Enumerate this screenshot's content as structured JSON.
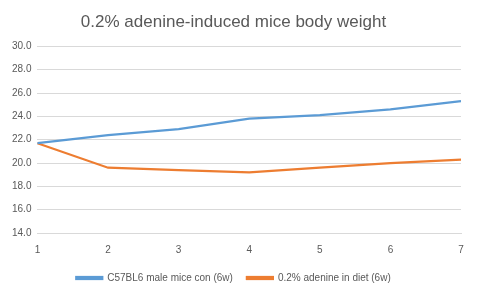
{
  "chart_data": {
    "type": "line",
    "title": "0.2% adenine-induced mice body weight",
    "categories": [
      "1",
      "2",
      "3",
      "4",
      "5",
      "6",
      "7"
    ],
    "series": [
      {
        "name": "C57BL6 male mice con (6w)",
        "color": "#5b9bd5",
        "values": [
          21.7,
          22.4,
          22.9,
          23.8,
          24.1,
          24.6,
          25.3
        ],
        "marker": "none",
        "line_style": "solid"
      },
      {
        "name": "0.2% adenine in diet (6w)",
        "color": "#ed7d31",
        "values": [
          21.7,
          19.6,
          19.4,
          19.2,
          19.6,
          20.0,
          20.3
        ],
        "marker": "none",
        "line_style": "solid"
      }
    ],
    "ylim": [
      14,
      30
    ],
    "yticks": [
      {
        "value": 14,
        "label": "14.0"
      },
      {
        "value": 16,
        "label": "16.0"
      },
      {
        "value": 18,
        "label": "18.0"
      },
      {
        "value": 20,
        "label": "20.0"
      },
      {
        "value": 22,
        "label": "22.0"
      },
      {
        "value": 24,
        "label": "24.0"
      },
      {
        "value": 26,
        "label": "26.0"
      },
      {
        "value": 28,
        "label": "28.0"
      },
      {
        "value": 30,
        "label": "30.0"
      }
    ],
    "grid": true,
    "legend": "bottom"
  }
}
